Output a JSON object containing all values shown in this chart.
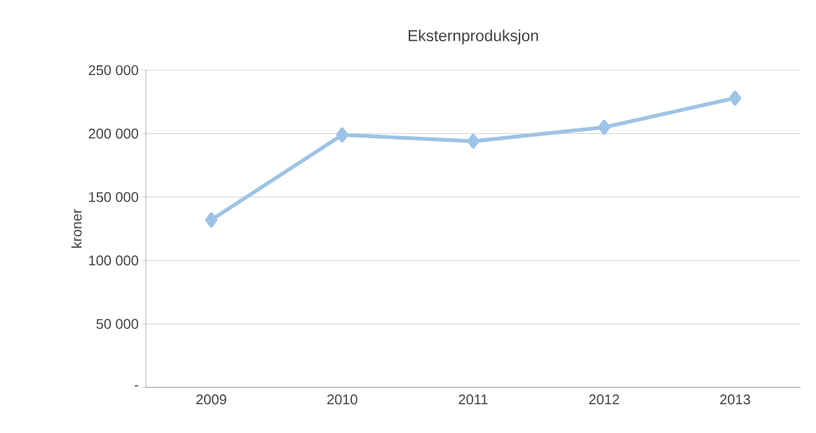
{
  "chart_data": {
    "type": "line",
    "title": "Eksternproduksjon",
    "ylabel": "kroner",
    "categories": [
      "2009",
      "2010",
      "2011",
      "2012",
      "2013"
    ],
    "series": [
      {
        "color": "#9dc3e6",
        "values": [
          132000,
          199000,
          194000,
          205000,
          228000
        ]
      }
    ],
    "ylim": [
      0,
      250000
    ],
    "yticks": [
      {
        "value": 0,
        "label": "-"
      },
      {
        "value": 50000,
        "label": "50 000"
      },
      {
        "value": 100000,
        "label": "100 000"
      },
      {
        "value": 150000,
        "label": "150 000"
      },
      {
        "value": 200000,
        "label": "200 000"
      },
      {
        "value": 250000,
        "label": "250 000"
      }
    ],
    "grid": "y",
    "marker": "diamond",
    "line_style": "solid"
  }
}
